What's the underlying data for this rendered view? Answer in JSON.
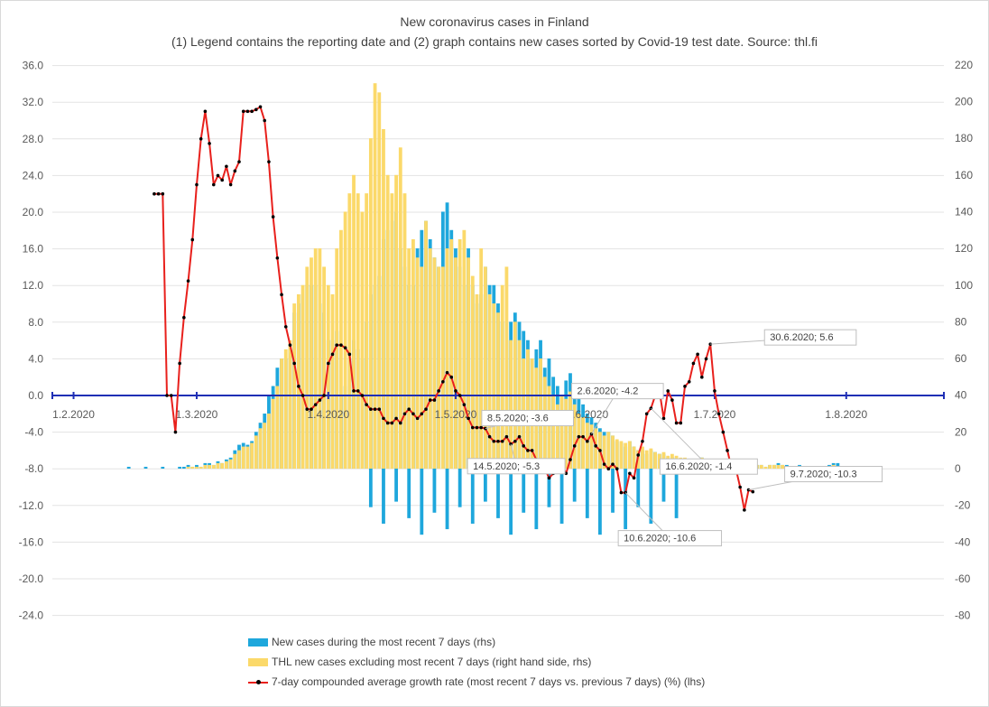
{
  "chart_data": {
    "type": "bar+line",
    "title": "New coronavirus cases in Finland",
    "subtitle": "(1) Legend contains the reporting date and (2)  graph contains new cases sorted by Covid-19 test date. Source: thl.fi",
    "x_axis": {
      "range": [
        "2020-01-27",
        "2020-08-24"
      ],
      "tick_labels": [
        "1.2.2020",
        "1.3.2020",
        "1.4.2020",
        "1.5.2020",
        "1.6.2020",
        "1.7.2020",
        "1.8.2020"
      ],
      "tick_dates": [
        "2020-02-01",
        "2020-03-01",
        "2020-04-01",
        "2020-05-01",
        "2020-06-01",
        "2020-07-01",
        "2020-08-01"
      ]
    },
    "y_left": {
      "min": -24,
      "max": 36,
      "step": 4,
      "tick_labels": [
        "36.0",
        "32.0",
        "28.0",
        "24.0",
        "20.0",
        "16.0",
        "12.0",
        "8.0",
        "4.0",
        "0.0",
        "-4.0",
        "-8.0",
        "-12.0",
        "-16.0",
        "-20.0",
        "-24.0"
      ]
    },
    "y_right": {
      "min": -80,
      "max": 220,
      "step": 20,
      "tick_labels": [
        "220",
        "200",
        "180",
        "160",
        "140",
        "120",
        "100",
        "80",
        "60",
        "40",
        "20",
        "0",
        "-20",
        "-40",
        "-60",
        "-80"
      ]
    },
    "legend_position": "bottom",
    "series": [
      {
        "name": "New cases during the most recent 7 days (rhs)",
        "kind": "bar",
        "axis": "right",
        "color": "#1ea7dc",
        "start_date": "2020-02-14",
        "values": [
          1,
          0,
          0,
          0,
          1,
          0,
          0,
          0,
          1,
          0,
          0,
          0,
          1,
          1,
          2,
          1,
          2,
          1,
          3,
          3,
          2,
          4,
          3,
          5,
          6,
          10,
          13,
          14,
          13,
          15,
          20,
          25,
          30,
          40,
          45,
          55,
          60,
          60,
          65,
          85,
          90,
          95,
          100,
          100,
          100,
          90,
          85,
          70,
          70,
          75,
          40,
          45,
          60,
          70,
          65,
          60,
          80,
          95,
          100,
          105,
          125,
          130,
          135,
          140,
          120,
          110,
          100,
          100,
          120,
          130,
          135,
          125,
          115,
          110,
          140,
          145,
          130,
          120,
          110,
          100,
          120,
          100,
          90,
          95,
          110,
          100,
          100,
          90,
          80,
          70,
          80,
          85,
          80,
          75,
          70,
          60,
          65,
          70,
          55,
          60,
          50,
          45,
          40,
          48,
          52,
          45,
          40,
          35,
          30,
          28,
          25,
          22,
          20,
          20,
          18,
          15,
          14,
          12,
          15,
          12,
          10,
          10,
          8,
          10,
          9,
          8,
          8,
          6,
          6,
          6,
          5,
          5,
          5,
          5,
          4,
          6,
          5,
          4,
          4,
          3,
          3,
          4,
          2,
          3,
          2,
          3,
          2,
          3,
          2,
          2,
          1,
          2,
          2,
          3,
          2,
          2,
          1,
          1,
          2,
          1,
          1,
          1,
          1,
          1,
          1,
          2,
          3,
          3
        ]
      },
      {
        "name": "THL new cases excluding most recent 7 days (right hand side, rhs)",
        "kind": "bar",
        "axis": "right",
        "color": "#fbd96a",
        "start_date": "2020-02-14",
        "values": [
          0,
          0,
          0,
          0,
          0,
          0,
          0,
          0,
          0,
          0,
          0,
          0,
          0,
          0,
          1,
          1,
          1,
          1,
          2,
          2,
          2,
          3,
          3,
          4,
          5,
          8,
          10,
          12,
          12,
          14,
          18,
          22,
          25,
          30,
          38,
          45,
          60,
          65,
          70,
          90,
          95,
          100,
          110,
          115,
          120,
          120,
          110,
          100,
          95,
          120,
          130,
          140,
          150,
          160,
          150,
          140,
          150,
          180,
          210,
          205,
          185,
          160,
          150,
          160,
          175,
          150,
          120,
          125,
          115,
          110,
          135,
          120,
          115,
          110,
          110,
          120,
          125,
          115,
          125,
          130,
          115,
          105,
          95,
          120,
          110,
          95,
          90,
          85,
          100,
          110,
          70,
          80,
          70,
          60,
          65,
          60,
          55,
          60,
          50,
          45,
          40,
          35,
          40,
          38,
          42,
          35,
          30,
          28,
          25,
          24,
          22,
          20,
          18,
          20,
          18,
          16,
          15,
          14,
          15,
          12,
          10,
          12,
          10,
          11,
          9,
          8,
          9,
          7,
          8,
          7,
          6,
          6,
          5,
          5,
          4,
          6,
          5,
          4,
          4,
          3,
          3,
          4,
          3,
          3,
          2,
          3,
          2,
          2,
          2,
          2,
          1,
          2,
          2,
          2,
          2,
          1,
          1,
          1,
          1,
          1,
          1,
          1,
          1,
          1,
          1,
          1,
          2,
          1
        ]
      },
      {
        "name": "7-day compounded average growth rate (most recent 7 days vs. previous 7 days) (%) (lhs)",
        "kind": "line",
        "axis": "left",
        "color": "#e8201c",
        "marker_color": "#000000",
        "points": [
          [
            "2020-02-20",
            22
          ],
          [
            "2020-02-21",
            22
          ],
          [
            "2020-02-22",
            22
          ],
          [
            "2020-02-23",
            0
          ],
          [
            "2020-02-24",
            0
          ],
          [
            "2020-02-25",
            -4
          ],
          [
            "2020-02-26",
            3.5
          ],
          [
            "2020-02-27",
            8.5
          ],
          [
            "2020-02-28",
            12.5
          ],
          [
            "2020-02-29",
            17
          ],
          [
            "2020-03-01",
            23
          ],
          [
            "2020-03-02",
            28
          ],
          [
            "2020-03-03",
            31
          ],
          [
            "2020-03-04",
            27.5
          ],
          [
            "2020-03-05",
            23
          ],
          [
            "2020-03-06",
            24
          ],
          [
            "2020-03-07",
            23.5
          ],
          [
            "2020-03-08",
            25
          ],
          [
            "2020-03-09",
            23
          ],
          [
            "2020-03-10",
            24.5
          ],
          [
            "2020-03-11",
            25.5
          ],
          [
            "2020-03-12",
            31
          ],
          [
            "2020-03-13",
            31
          ],
          [
            "2020-03-14",
            31
          ],
          [
            "2020-03-15",
            31.2
          ],
          [
            "2020-03-16",
            31.5
          ],
          [
            "2020-03-17",
            30
          ],
          [
            "2020-03-18",
            25.5
          ],
          [
            "2020-03-19",
            19.5
          ],
          [
            "2020-03-20",
            15
          ],
          [
            "2020-03-21",
            11
          ],
          [
            "2020-03-22",
            7.5
          ],
          [
            "2020-03-23",
            5.5
          ],
          [
            "2020-03-24",
            3.5
          ],
          [
            "2020-03-25",
            1
          ],
          [
            "2020-03-26",
            0
          ],
          [
            "2020-03-27",
            -1.5
          ],
          [
            "2020-03-28",
            -1.5
          ],
          [
            "2020-03-29",
            -1
          ],
          [
            "2020-03-30",
            -0.5
          ],
          [
            "2020-03-31",
            0
          ],
          [
            "2020-04-01",
            3.5
          ],
          [
            "2020-04-02",
            4.5
          ],
          [
            "2020-04-03",
            5.5
          ],
          [
            "2020-04-04",
            5.5
          ],
          [
            "2020-04-05",
            5.2
          ],
          [
            "2020-04-06",
            4.5
          ],
          [
            "2020-04-07",
            0.5
          ],
          [
            "2020-04-08",
            0.5
          ],
          [
            "2020-04-09",
            0
          ],
          [
            "2020-04-10",
            -1
          ],
          [
            "2020-04-11",
            -1.5
          ],
          [
            "2020-04-12",
            -1.5
          ],
          [
            "2020-04-13",
            -1.5
          ],
          [
            "2020-04-14",
            -2.5
          ],
          [
            "2020-04-15",
            -3
          ],
          [
            "2020-04-16",
            -3
          ],
          [
            "2020-04-17",
            -2.5
          ],
          [
            "2020-04-18",
            -3
          ],
          [
            "2020-04-19",
            -2
          ],
          [
            "2020-04-20",
            -1.5
          ],
          [
            "2020-04-21",
            -2
          ],
          [
            "2020-04-22",
            -2.5
          ],
          [
            "2020-04-23",
            -2
          ],
          [
            "2020-04-24",
            -1.5
          ],
          [
            "2020-04-25",
            -0.5
          ],
          [
            "2020-04-26",
            -0.5
          ],
          [
            "2020-04-27",
            0.5
          ],
          [
            "2020-04-28",
            1.5
          ],
          [
            "2020-04-29",
            2.5
          ],
          [
            "2020-04-30",
            2
          ],
          [
            "2020-05-01",
            0.5
          ],
          [
            "2020-05-02",
            0
          ],
          [
            "2020-05-03",
            -1
          ],
          [
            "2020-05-04",
            -2.5
          ],
          [
            "2020-05-05",
            -3.5
          ],
          [
            "2020-05-06",
            -3.5
          ],
          [
            "2020-05-07",
            -3.5
          ],
          [
            "2020-05-08",
            -3.6
          ],
          [
            "2020-05-09",
            -4.5
          ],
          [
            "2020-05-10",
            -5
          ],
          [
            "2020-05-11",
            -5
          ],
          [
            "2020-05-12",
            -5
          ],
          [
            "2020-05-13",
            -4.5
          ],
          [
            "2020-05-14",
            -5.3
          ],
          [
            "2020-05-15",
            -5
          ],
          [
            "2020-05-16",
            -4.5
          ],
          [
            "2020-05-17",
            -5.5
          ],
          [
            "2020-05-18",
            -6
          ],
          [
            "2020-05-19",
            -6
          ],
          [
            "2020-05-20",
            -7
          ],
          [
            "2020-05-21",
            -7.5
          ],
          [
            "2020-05-22",
            -8
          ],
          [
            "2020-05-23",
            -9
          ],
          [
            "2020-05-24",
            -8.5
          ],
          [
            "2020-05-25",
            -7.5
          ],
          [
            "2020-05-26",
            -7.5
          ],
          [
            "2020-05-27",
            -8.5
          ],
          [
            "2020-05-28",
            -7
          ],
          [
            "2020-05-29",
            -5.5
          ],
          [
            "2020-05-30",
            -4.5
          ],
          [
            "2020-05-31",
            -4.5
          ],
          [
            "2020-06-01",
            -5
          ],
          [
            "2020-06-02",
            -4.2
          ],
          [
            "2020-06-03",
            -5.5
          ],
          [
            "2020-06-04",
            -6
          ],
          [
            "2020-06-05",
            -7.5
          ],
          [
            "2020-06-06",
            -8
          ],
          [
            "2020-06-07",
            -7.5
          ],
          [
            "2020-06-08",
            -8
          ],
          [
            "2020-06-09",
            -10.6
          ],
          [
            "2020-06-10",
            -10.6
          ],
          [
            "2020-06-11",
            -8.5
          ],
          [
            "2020-06-12",
            -9
          ],
          [
            "2020-06-13",
            -6.5
          ],
          [
            "2020-06-14",
            -5
          ],
          [
            "2020-06-15",
            -2
          ],
          [
            "2020-06-16",
            -1.4
          ],
          [
            "2020-06-17",
            0
          ],
          [
            "2020-06-18",
            0.5
          ],
          [
            "2020-06-19",
            -2.5
          ],
          [
            "2020-06-20",
            0.5
          ],
          [
            "2020-06-21",
            -0.5
          ],
          [
            "2020-06-22",
            -3
          ],
          [
            "2020-06-23",
            -3
          ],
          [
            "2020-06-24",
            1
          ],
          [
            "2020-06-25",
            1.5
          ],
          [
            "2020-06-26",
            3.5
          ],
          [
            "2020-06-27",
            4.5
          ],
          [
            "2020-06-28",
            2
          ],
          [
            "2020-06-29",
            4
          ],
          [
            "2020-06-30",
            5.6
          ],
          [
            "2020-07-01",
            0.5
          ],
          [
            "2020-07-02",
            -2
          ],
          [
            "2020-07-03",
            -4
          ],
          [
            "2020-07-04",
            -6
          ],
          [
            "2020-07-05",
            -8
          ],
          [
            "2020-07-06",
            -8
          ],
          [
            "2020-07-07",
            -10
          ],
          [
            "2020-07-08",
            -12.5
          ],
          [
            "2020-07-09",
            -10.3
          ],
          [
            "2020-07-10",
            -10.5
          ]
        ]
      }
    ],
    "annotations": [
      {
        "label": "30.6.2020; 5.6",
        "date": "2020-06-30",
        "value": 5.6
      },
      {
        "label": "2.6.2020; -4.2",
        "date": "2020-06-02",
        "value": -4.2
      },
      {
        "label": "8.5.2020; -3.6",
        "date": "2020-05-08",
        "value": -3.6
      },
      {
        "label": "14.5.2020; -5.3",
        "date": "2020-05-14",
        "value": -5.3
      },
      {
        "label": "16.6.2020; -1.4",
        "date": "2020-06-16",
        "value": -1.4
      },
      {
        "label": "10.6.2020; -10.6",
        "date": "2020-06-10",
        "value": -10.6
      },
      {
        "label": "9.7.2020; -10.3",
        "date": "2020-07-09",
        "value": -10.3
      }
    ]
  }
}
